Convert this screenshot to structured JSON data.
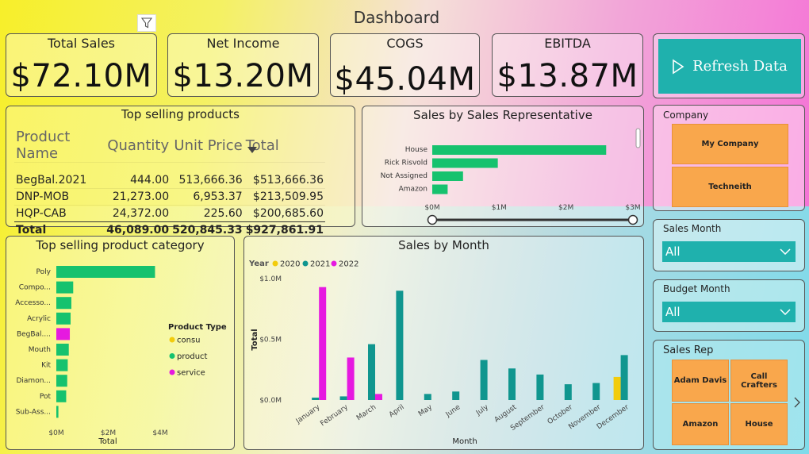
{
  "page": {
    "title": "Dashboard"
  },
  "kpis": [
    {
      "label": "Total Sales",
      "value": "$72.10M"
    },
    {
      "label": "Net Income",
      "value": "$13.20M"
    },
    {
      "label": "COGS",
      "value": "$45.04M"
    },
    {
      "label": "EBITDA",
      "value": "$13.87M"
    }
  ],
  "refresh": {
    "label": "Refresh Data"
  },
  "top_products": {
    "title": "Top selling products",
    "columns": [
      "Product Name",
      "Quantity",
      "Unit Price",
      "Total"
    ],
    "rows": [
      [
        "BegBal.2021",
        "444.00",
        "513,666.36",
        "$513,666.36"
      ],
      [
        "DNP-MOB",
        "21,273.00",
        "6,953.37",
        "$213,509.95"
      ],
      [
        "HQP-CAB",
        "24,372.00",
        "225.60",
        "$200,685.60"
      ]
    ],
    "total": [
      "Total",
      "46,089.00",
      "520,845.33",
      "$927,861.91"
    ]
  },
  "sales_rep_chart": {
    "title": "Sales by Sales Representative",
    "axis_ticks": [
      "$0M",
      "$1M",
      "$2M",
      "$3M"
    ]
  },
  "category_chart": {
    "title": "Top selling product category",
    "xlabel": "Total",
    "axis_ticks": [
      "$0M",
      "$2M",
      "$4M"
    ],
    "legend_title": "Product Type",
    "legend": [
      "consu",
      "product",
      "service"
    ]
  },
  "month_chart": {
    "title": "Sales by Month",
    "legend_title": "Year",
    "legend": [
      "2020",
      "2021",
      "2022"
    ],
    "ylabel": "Total",
    "xlabel": "Month",
    "y_ticks": [
      "$1.0M",
      "$0.5M",
      "$0.0M"
    ]
  },
  "slicers": {
    "company": {
      "label": "Company",
      "options": [
        "My Company",
        "Techneith"
      ]
    },
    "sales_month": {
      "label": "Sales Month",
      "value": "All"
    },
    "budget_month": {
      "label": "Budget Month",
      "value": "All"
    },
    "sales_rep": {
      "label": "Sales Rep",
      "options": [
        "Adam Davis",
        "Call Crafters",
        "Amazon",
        "House"
      ]
    }
  },
  "colors": {
    "green": "#16c26e",
    "teal": "#10968f",
    "magenta": "#e619e0",
    "yellow": "#f2cc0c",
    "button": "#1fb1ad",
    "tile": "#f9a74c"
  },
  "chart_data": [
    {
      "type": "bar",
      "orientation": "horizontal",
      "title": "Sales by Sales Representative",
      "categories": [
        "House",
        "Rick Risvold",
        "Not Assigned",
        "Amazon"
      ],
      "values": [
        2.6,
        0.98,
        0.46,
        0.23
      ],
      "unit": "$M",
      "xlim": [
        0,
        3
      ]
    },
    {
      "type": "bar",
      "orientation": "horizontal",
      "title": "Top selling product category",
      "categories": [
        "Poly",
        "Compo...",
        "Accesso...",
        "Acrylic",
        "BegBal....",
        "Mouth",
        "Kit",
        "Diamon...",
        "Pot",
        "Sub-Ass..."
      ],
      "values": [
        3.8,
        0.65,
        0.58,
        0.55,
        0.52,
        0.48,
        0.44,
        0.42,
        0.38,
        0.08
      ],
      "product_type": [
        "product",
        "product",
        "product",
        "product",
        "service",
        "product",
        "product",
        "product",
        "product",
        "product"
      ],
      "unit": "$M",
      "xlim": [
        0,
        4.2
      ],
      "xlabel": "Total"
    },
    {
      "type": "bar",
      "title": "Sales by Month",
      "categories": [
        "January",
        "February",
        "March",
        "April",
        "May",
        "June",
        "July",
        "August",
        "September",
        "October",
        "November",
        "December"
      ],
      "series": [
        {
          "name": "2020",
          "values": [
            0,
            0,
            0,
            0,
            0,
            0,
            0,
            0,
            0,
            0,
            0,
            0.19
          ]
        },
        {
          "name": "2021",
          "values": [
            0.02,
            0.03,
            0.46,
            0.9,
            0.05,
            0.07,
            0.33,
            0.26,
            0.21,
            0.13,
            0.14,
            0.37
          ]
        },
        {
          "name": "2022",
          "values": [
            0.93,
            0.35,
            0.05,
            0,
            0,
            0,
            0,
            0,
            0,
            0,
            0,
            0
          ]
        }
      ],
      "unit": "$M",
      "ylim": [
        0,
        1.0
      ],
      "xlabel": "Month",
      "ylabel": "Total"
    }
  ]
}
